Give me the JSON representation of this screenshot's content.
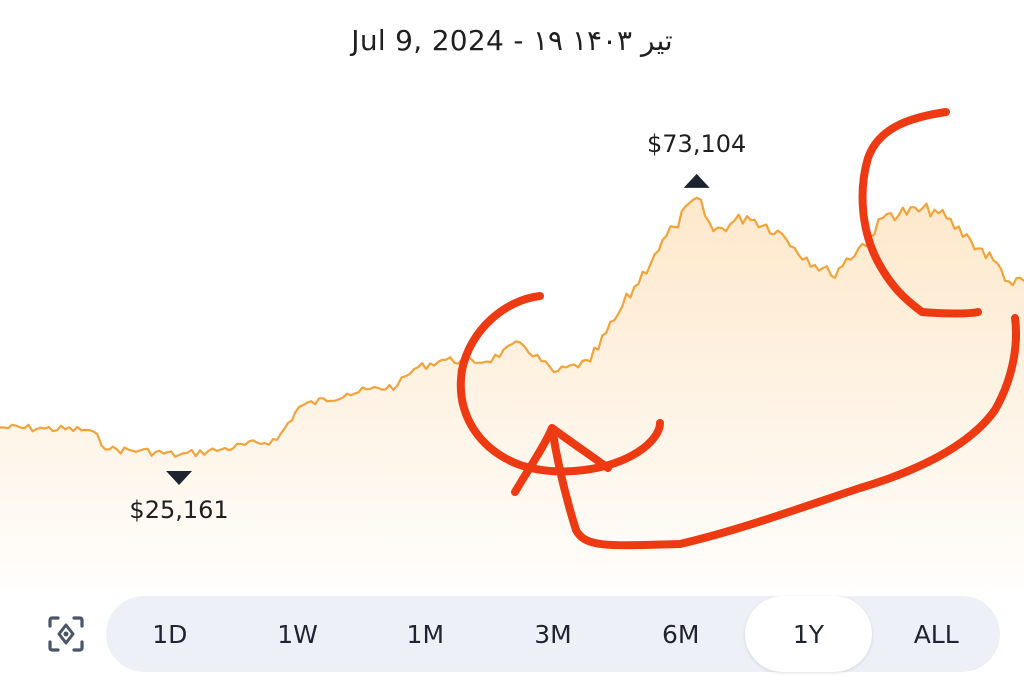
{
  "header": {
    "date_text": "Jul 9, 2024 - ۱۹ تیر ۱۴۰۳"
  },
  "chart_data": {
    "type": "area",
    "title": "",
    "xlabel": "",
    "ylabel": "",
    "ylim": [
      0,
      110000
    ],
    "line_color": "#f2a33a",
    "fill_color": "#fde4c2",
    "x": [
      "2023-07-09",
      "2023-07-25",
      "2023-08-10",
      "2023-08-17",
      "2023-08-28",
      "2023-09-11",
      "2023-09-26",
      "2023-10-16",
      "2023-10-24",
      "2023-11-10",
      "2023-11-28",
      "2023-12-04",
      "2023-12-14",
      "2023-12-30",
      "2024-01-11",
      "2024-01-23",
      "2024-02-05",
      "2024-02-15",
      "2024-02-28",
      "2024-03-06",
      "2024-03-14",
      "2024-03-20",
      "2024-04-01",
      "2024-04-12",
      "2024-04-18",
      "2024-05-01",
      "2024-05-15",
      "2024-05-21",
      "2024-06-07",
      "2024-06-20",
      "2024-06-28",
      "2024-07-05",
      "2024-07-09"
    ],
    "values": [
      30300,
      30100,
      29800,
      26200,
      26000,
      25161,
      26200,
      28000,
      34200,
      36600,
      38100,
      41200,
      42900,
      42600,
      46100,
      40600,
      42600,
      51500,
      62600,
      67700,
      73104,
      66900,
      69700,
      67000,
      63800,
      58700,
      65800,
      70100,
      70900,
      65200,
      61500,
      56800,
      57600
    ],
    "annotations": {
      "max": {
        "label": "$73,104",
        "value": 73104,
        "date": "2024-03-14"
      },
      "min": {
        "label": "$25,161",
        "value": 25161,
        "date": "2023-09-11"
      }
    },
    "overlay_stroke_color": "#ee3a12"
  },
  "range_selector": {
    "options": [
      "1D",
      "1W",
      "1M",
      "3M",
      "6M",
      "1Y",
      "ALL"
    ],
    "selected": "1Y"
  },
  "icons": {
    "focus": "focus-target-icon"
  }
}
